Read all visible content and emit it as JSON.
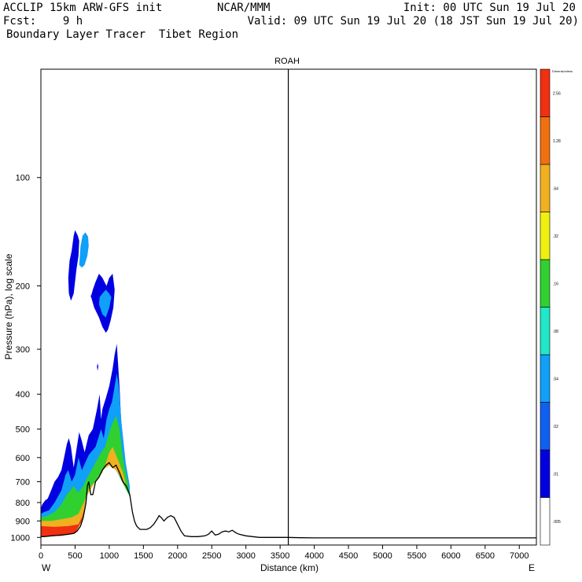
{
  "header": {
    "line1_left": "ACCLIP 15km ARW-GFS init",
    "line1_mid": "NCAR/MMM",
    "line1_right": "Init: 00 UTC Sun 19 Jul 20",
    "line2_left": "Fcst:    9 h",
    "line2_right": "Valid: 09 UTC Sun 19 Jul 20 (18 JST Sun 19 Jul 20)",
    "line3": "Boundary Layer Tracer  Tibet Region"
  },
  "chart_data": {
    "type": "cross-section",
    "title": "ROAH",
    "xlabel": "Distance (km)",
    "ylabel": "Pressure (hPa), log scale",
    "xlim": [
      0,
      7250
    ],
    "ylim": [
      1050,
      50
    ],
    "x_ticks": [
      0,
      500,
      1000,
      1500,
      2000,
      2500,
      3000,
      3500,
      4000,
      4500,
      5000,
      5500,
      6000,
      6500,
      7000
    ],
    "y_ticks": [
      100,
      200,
      300,
      400,
      500,
      600,
      700,
      800,
      900,
      1000
    ],
    "left_end_label": "W",
    "right_end_label": "E",
    "vertical_marker_km": 3620,
    "colorbar": {
      "title": "Dimensionless",
      "labels": [
        ".005",
        ".01",
        ".02",
        ".04",
        ".08",
        ".16",
        ".32",
        ".64",
        "1.28",
        "2.56"
      ],
      "colors": [
        "#ffffff",
        "#0000e0",
        "#1060f0",
        "#10a0f8",
        "#20e8c8",
        "#30d030",
        "#f0f010",
        "#f0b020",
        "#f07010",
        "#f03010"
      ]
    },
    "terrain_surface": {
      "distance_km": [
        0,
        50,
        150,
        300,
        400,
        480,
        530,
        580,
        620,
        660,
        680,
        700,
        730,
        760,
        800,
        850,
        900,
        950,
        1000,
        1050,
        1100,
        1150,
        1200,
        1250,
        1300,
        1340,
        1370,
        1400,
        1450,
        1500,
        1550,
        1600,
        1650,
        1700,
        1730,
        1760,
        1800,
        1850,
        1900,
        1950,
        2000,
        2050,
        2100,
        2200,
        2300,
        2400,
        2450,
        2500,
        2550,
        2600,
        2650,
        2700,
        2750,
        2800,
        2850,
        2900,
        3000,
        3200,
        3400,
        3600,
        3800,
        4000,
        5000,
        6000,
        7250
      ],
      "pressure_hpa": [
        995,
        995,
        990,
        985,
        980,
        975,
        960,
        930,
        880,
        800,
        720,
        700,
        760,
        760,
        700,
        680,
        650,
        630,
        620,
        640,
        630,
        660,
        700,
        720,
        760,
        850,
        900,
        930,
        950,
        950,
        950,
        940,
        920,
        890,
        870,
        880,
        900,
        880,
        870,
        880,
        920,
        960,
        990,
        995,
        995,
        990,
        980,
        960,
        985,
        980,
        965,
        960,
        965,
        955,
        970,
        980,
        990,
        1000,
        1000,
        1000,
        1002,
        1003,
        1003,
        1003,
        1003
      ]
    },
    "tracer_regions": [
      {
        "level": ".01",
        "distance_km": [
          0,
          20,
          60,
          100,
          150,
          200,
          250,
          300,
          340,
          380,
          410,
          440,
          480,
          520,
          560,
          600,
          640,
          700,
          760,
          820,
          860,
          880,
          900,
          950,
          1000,
          1050,
          1080,
          1110,
          1150,
          1180,
          1220,
          1260,
          1300,
          1300,
          1200,
          1100,
          1000,
          900,
          800,
          700,
          650,
          600,
          500,
          400,
          300,
          200,
          100,
          0
        ],
        "pressure_hpa": [
          830,
          810,
          790,
          780,
          740,
          700,
          680,
          650,
          600,
          550,
          530,
          560,
          640,
          570,
          510,
          540,
          580,
          520,
          500,
          440,
          400,
          470,
          440,
          410,
          380,
          340,
          310,
          290,
          380,
          500,
          600,
          680,
          730,
          770,
          700,
          650,
          630,
          650,
          700,
          730,
          800,
          900,
          975,
          980,
          985,
          990,
          995,
          995
        ]
      },
      {
        "level": ".04",
        "distance_km": [
          0,
          50,
          120,
          200,
          300,
          360,
          400,
          450,
          500,
          550,
          600,
          700,
          800,
          880,
          920,
          960,
          1000,
          1040,
          1080,
          1110,
          1140,
          1180,
          1240,
          1300,
          1300,
          1100,
          1000,
          900,
          800,
          700,
          650,
          600,
          500,
          0
        ],
        "pressure_hpa": [
          860,
          850,
          840,
          800,
          740,
          670,
          650,
          700,
          670,
          600,
          650,
          590,
          560,
          500,
          530,
          470,
          440,
          420,
          380,
          350,
          380,
          480,
          620,
          720,
          770,
          650,
          630,
          650,
          700,
          730,
          800,
          900,
          975,
          995
        ]
      },
      {
        "level": ".16",
        "distance_km": [
          0,
          100,
          200,
          300,
          380,
          430,
          480,
          540,
          600,
          700,
          800,
          880,
          940,
          1000,
          1050,
          1100,
          1150,
          1200,
          1280,
          1300,
          1100,
          1000,
          900,
          800,
          700,
          650,
          600,
          500,
          0
        ],
        "pressure_hpa": [
          880,
          870,
          850,
          810,
          760,
          740,
          720,
          750,
          730,
          670,
          620,
          580,
          560,
          510,
          480,
          460,
          500,
          600,
          720,
          770,
          650,
          630,
          650,
          700,
          730,
          800,
          900,
          975,
          995
        ]
      },
      {
        "level": ".64",
        "distance_km": [
          0,
          150,
          300,
          450,
          550,
          600,
          700,
          800,
          900,
          950,
          1000,
          1050,
          1100,
          1200,
          1250,
          1100,
          1000,
          900,
          800,
          700,
          650,
          600,
          500,
          0
        ],
        "pressure_hpa": [
          900,
          900,
          890,
          880,
          860,
          820,
          750,
          700,
          660,
          620,
          580,
          560,
          590,
          660,
          720,
          650,
          630,
          650,
          700,
          730,
          800,
          900,
          975,
          995
        ]
      },
      {
        "level": "2.56",
        "distance_km": [
          0,
          200,
          400,
          550,
          600,
          640,
          600,
          500,
          300,
          0
        ],
        "pressure_hpa": [
          930,
          935,
          930,
          920,
          880,
          830,
          900,
          975,
          990,
          995
        ]
      },
      {
        "level": ".01",
        "distance_km": [
          410,
          440,
          480,
          520,
          550,
          560,
          540,
          500,
          480,
          450,
          420,
          400,
          410
        ],
        "pressure_hpa": [
          210,
          220,
          210,
          180,
          165,
          150,
          145,
          140,
          145,
          160,
          170,
          190,
          210
        ]
      },
      {
        "level": ".04",
        "distance_km": [
          560,
          600,
          640,
          680,
          700,
          690,
          650,
          610,
          580,
          560
        ],
        "pressure_hpa": [
          175,
          178,
          175,
          165,
          155,
          146,
          142,
          145,
          155,
          175
        ]
      },
      {
        "level": ".01",
        "distance_km": [
          720,
          780,
          850,
          900,
          950,
          980,
          1020,
          1060,
          1080,
          1050,
          1000,
          960,
          900,
          850,
          800,
          760,
          730,
          720
        ],
        "pressure_hpa": [
          210,
          230,
          245,
          260,
          270,
          265,
          250,
          230,
          205,
          185,
          190,
          200,
          190,
          185,
          195,
          205,
          215,
          210
        ]
      },
      {
        "level": ".04",
        "distance_km": [
          850,
          900,
          950,
          1000,
          1030,
          1000,
          950,
          900,
          860,
          850
        ],
        "pressure_hpa": [
          225,
          240,
          245,
          230,
          215,
          210,
          205,
          210,
          215,
          225
        ]
      },
      {
        "level": ".01",
        "distance_km": [
          820,
          830,
          840,
          830,
          820
        ],
        "pressure_hpa": [
          335,
          345,
          335,
          328,
          335
        ]
      }
    ]
  }
}
